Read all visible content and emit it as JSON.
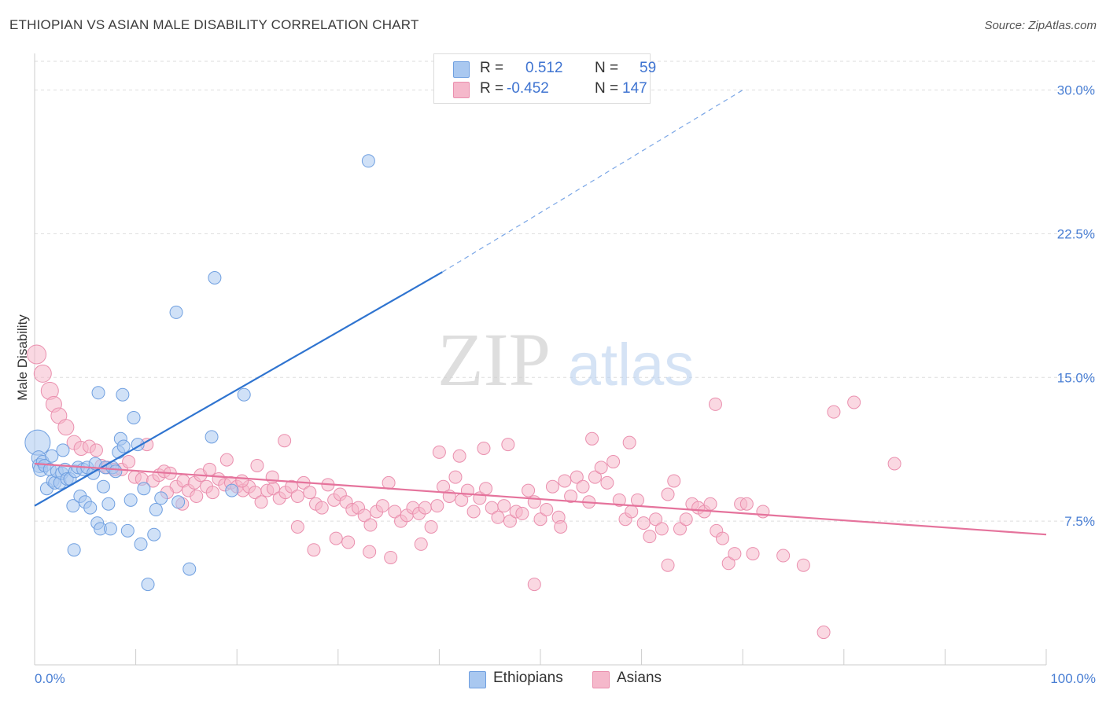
{
  "header": {
    "title": "ETHIOPIAN VS ASIAN MALE DISABILITY CORRELATION CHART",
    "source": "Source: ZipAtlas.com"
  },
  "watermark": {
    "zip": "ZIP",
    "atlas": "atlas"
  },
  "legend": {
    "rows": [
      {
        "r_label": "R =",
        "r_value": "0.512",
        "n_label": "N =",
        "n_value": "59",
        "color": "#a9c8f0"
      },
      {
        "r_label": "R =",
        "r_value": "-0.452",
        "n_label": "N =",
        "n_value": "147",
        "color": "#f5b8cb"
      }
    ]
  },
  "bottom_legend": {
    "ethiopians": "Ethiopians",
    "asians": "Asians"
  },
  "chart_data": {
    "type": "scatter",
    "title": "ETHIOPIAN VS ASIAN MALE DISABILITY CORRELATION CHART",
    "xlabel": "",
    "ylabel": "Male Disability",
    "xlim": [
      0,
      100
    ],
    "ylim": [
      0,
      31.5
    ],
    "y_ticks": [
      {
        "value": 7.5,
        "label": "7.5%"
      },
      {
        "value": 15.0,
        "label": "15.0%"
      },
      {
        "value": 22.5,
        "label": "22.5%"
      },
      {
        "value": 30.0,
        "label": "30.0%"
      }
    ],
    "x_ticks": [
      {
        "value": 0,
        "label": "0.0%"
      },
      {
        "value": 100,
        "label": "100.0%"
      }
    ],
    "grid": true,
    "legend_position": "top-center",
    "series": [
      {
        "name": "Ethiopians",
        "color": "#6f9fe0",
        "fill": "#a9c8f0",
        "r": 0.512,
        "n": 59,
        "trend": {
          "x0": 0,
          "y0": 8.3,
          "x1": 40.3,
          "y1": 20.5,
          "dash_to_x": 70.0,
          "dash_to_y": 30.0,
          "color": "#2f74d0"
        },
        "points": [
          [
            0.3,
            11.6,
            16
          ],
          [
            0.4,
            10.8,
            9
          ],
          [
            0.5,
            10.4,
            9
          ],
          [
            0.6,
            10.2,
            9
          ],
          [
            0.8,
            10.6,
            8
          ],
          [
            1.0,
            10.4,
            8
          ],
          [
            1.2,
            9.2,
            8
          ],
          [
            1.5,
            10.2,
            8
          ],
          [
            1.8,
            9.6,
            8
          ],
          [
            2.0,
            9.5,
            8
          ],
          [
            2.2,
            10.1,
            8
          ],
          [
            2.5,
            9.5,
            8
          ],
          [
            2.7,
            10.0,
            8
          ],
          [
            3.0,
            10.2,
            8
          ],
          [
            3.2,
            9.7,
            8
          ],
          [
            3.5,
            9.7,
            8
          ],
          [
            3.8,
            8.3,
            8
          ],
          [
            4.0,
            10.1,
            8
          ],
          [
            4.3,
            10.3,
            8
          ],
          [
            4.5,
            8.8,
            8
          ],
          [
            4.8,
            10.2,
            8
          ],
          [
            5.0,
            8.5,
            8
          ],
          [
            5.2,
            10.3,
            8
          ],
          [
            5.5,
            8.2,
            8
          ],
          [
            5.8,
            10.0,
            8
          ],
          [
            6.0,
            10.5,
            8
          ],
          [
            6.2,
            7.4,
            8
          ],
          [
            6.5,
            7.1,
            8
          ],
          [
            6.8,
            9.3,
            8
          ],
          [
            7.0,
            10.3,
            8
          ],
          [
            7.3,
            8.4,
            8
          ],
          [
            7.5,
            7.1,
            8
          ],
          [
            7.7,
            10.3,
            8
          ],
          [
            8.0,
            10.1,
            8
          ],
          [
            8.3,
            11.1,
            8
          ],
          [
            8.5,
            11.8,
            8
          ],
          [
            8.8,
            11.4,
            8
          ],
          [
            9.2,
            7.0,
            8
          ],
          [
            9.5,
            8.6,
            8
          ],
          [
            9.8,
            12.9,
            8
          ],
          [
            10.2,
            11.5,
            8
          ],
          [
            10.5,
            6.3,
            8
          ],
          [
            10.8,
            9.2,
            8
          ],
          [
            11.2,
            4.2,
            8
          ],
          [
            11.8,
            6.8,
            8
          ],
          [
            12.0,
            8.1,
            8
          ],
          [
            12.5,
            8.7,
            8
          ],
          [
            3.9,
            6.0,
            8
          ],
          [
            2.8,
            11.2,
            8
          ],
          [
            1.7,
            10.9,
            8
          ],
          [
            6.3,
            14.2,
            8
          ],
          [
            8.7,
            14.1,
            8
          ],
          [
            14.0,
            18.4,
            8
          ],
          [
            14.2,
            8.5,
            8
          ],
          [
            15.3,
            5.0,
            8
          ],
          [
            17.5,
            11.9,
            8
          ],
          [
            17.8,
            20.2,
            8
          ],
          [
            19.5,
            9.1,
            8
          ],
          [
            20.7,
            14.1,
            8
          ],
          [
            33.0,
            26.3,
            8
          ]
        ]
      },
      {
        "name": "Asians",
        "color": "#ea8fae",
        "fill": "#f5b8cb",
        "r": -0.452,
        "n": 147,
        "trend": {
          "x0": 0,
          "y0": 10.5,
          "x1": 100,
          "y1": 6.8,
          "color": "#e5739c"
        },
        "points": [
          [
            0.2,
            16.2,
            12
          ],
          [
            0.8,
            15.2,
            11
          ],
          [
            1.5,
            14.3,
            11
          ],
          [
            1.9,
            13.6,
            10
          ],
          [
            2.4,
            13.0,
            10
          ],
          [
            3.1,
            12.4,
            10
          ],
          [
            3.9,
            11.6,
            9
          ],
          [
            4.6,
            11.3,
            9
          ],
          [
            5.4,
            11.4,
            8
          ],
          [
            6.1,
            11.2,
            8
          ],
          [
            6.6,
            10.4,
            8
          ],
          [
            7.2,
            10.3,
            8
          ],
          [
            7.9,
            10.2,
            8
          ],
          [
            8.6,
            10.2,
            8
          ],
          [
            9.3,
            10.6,
            8
          ],
          [
            9.9,
            9.8,
            8
          ],
          [
            10.6,
            9.7,
            8
          ],
          [
            11.1,
            11.5,
            8
          ],
          [
            11.7,
            9.6,
            8
          ],
          [
            12.3,
            9.9,
            8
          ],
          [
            12.8,
            10.1,
            8
          ],
          [
            13.4,
            10.0,
            8
          ],
          [
            14.0,
            9.3,
            8
          ],
          [
            14.7,
            9.6,
            8
          ],
          [
            15.2,
            9.1,
            8
          ],
          [
            15.8,
            9.5,
            8
          ],
          [
            16.4,
            9.9,
            8
          ],
          [
            17.0,
            9.3,
            8
          ],
          [
            17.6,
            9.0,
            8
          ],
          [
            18.2,
            9.7,
            8
          ],
          [
            18.8,
            9.4,
            8
          ],
          [
            19.4,
            9.5,
            8
          ],
          [
            20.0,
            9.3,
            8
          ],
          [
            20.6,
            9.1,
            8
          ],
          [
            21.2,
            9.3,
            8
          ],
          [
            21.8,
            9.0,
            8
          ],
          [
            22.4,
            8.5,
            8
          ],
          [
            23.0,
            9.1,
            8
          ],
          [
            23.6,
            9.2,
            8
          ],
          [
            24.2,
            8.7,
            8
          ],
          [
            24.8,
            9.0,
            8
          ],
          [
            25.4,
            9.3,
            8
          ],
          [
            26.0,
            8.8,
            8
          ],
          [
            26.6,
            9.5,
            8
          ],
          [
            27.2,
            9.0,
            8
          ],
          [
            27.8,
            8.4,
            8
          ],
          [
            28.4,
            8.2,
            8
          ],
          [
            29.0,
            9.4,
            8
          ],
          [
            29.6,
            8.6,
            8
          ],
          [
            30.2,
            8.9,
            8
          ],
          [
            30.8,
            8.5,
            8
          ],
          [
            31.4,
            8.1,
            8
          ],
          [
            32.0,
            8.2,
            8
          ],
          [
            32.6,
            7.8,
            8
          ],
          [
            33.2,
            7.3,
            8
          ],
          [
            33.8,
            8.0,
            8
          ],
          [
            34.4,
            8.3,
            8
          ],
          [
            35.0,
            9.5,
            8
          ],
          [
            35.6,
            8.0,
            8
          ],
          [
            36.2,
            7.5,
            8
          ],
          [
            36.8,
            7.8,
            8
          ],
          [
            37.4,
            8.2,
            8
          ],
          [
            38.0,
            7.9,
            8
          ],
          [
            38.6,
            8.2,
            8
          ],
          [
            39.2,
            7.2,
            8
          ],
          [
            39.8,
            8.3,
            8
          ],
          [
            40.4,
            9.3,
            8
          ],
          [
            41.0,
            8.8,
            8
          ],
          [
            41.6,
            9.8,
            8
          ],
          [
            42.2,
            8.6,
            8
          ],
          [
            42.8,
            9.1,
            8
          ],
          [
            43.4,
            8.0,
            8
          ],
          [
            44.0,
            8.7,
            8
          ],
          [
            44.6,
            9.2,
            8
          ],
          [
            45.2,
            8.2,
            8
          ],
          [
            45.8,
            7.7,
            8
          ],
          [
            46.4,
            8.3,
            8
          ],
          [
            47.0,
            7.5,
            8
          ],
          [
            47.6,
            8.0,
            8
          ],
          [
            48.2,
            7.9,
            8
          ],
          [
            48.8,
            9.1,
            8
          ],
          [
            49.4,
            8.5,
            8
          ],
          [
            50.0,
            7.6,
            8
          ],
          [
            50.6,
            8.1,
            8
          ],
          [
            51.2,
            9.3,
            8
          ],
          [
            51.8,
            7.7,
            8
          ],
          [
            52.4,
            9.6,
            8
          ],
          [
            53.0,
            8.8,
            8
          ],
          [
            53.6,
            9.8,
            8
          ],
          [
            54.2,
            9.3,
            8
          ],
          [
            54.8,
            8.5,
            8
          ],
          [
            55.4,
            9.8,
            8
          ],
          [
            56.0,
            10.3,
            8
          ],
          [
            56.6,
            9.5,
            8
          ],
          [
            57.2,
            10.6,
            8
          ],
          [
            57.8,
            8.6,
            8
          ],
          [
            58.4,
            7.6,
            8
          ],
          [
            59.0,
            8.0,
            8
          ],
          [
            59.6,
            8.6,
            8
          ],
          [
            60.2,
            7.4,
            8
          ],
          [
            60.8,
            6.7,
            8
          ],
          [
            61.4,
            7.6,
            8
          ],
          [
            62.0,
            7.1,
            8
          ],
          [
            62.6,
            8.9,
            8
          ],
          [
            63.2,
            9.6,
            8
          ],
          [
            63.8,
            7.1,
            8
          ],
          [
            64.4,
            7.6,
            8
          ],
          [
            65.0,
            8.4,
            8
          ],
          [
            65.6,
            8.2,
            8
          ],
          [
            66.2,
            8.0,
            8
          ],
          [
            66.8,
            8.4,
            8
          ],
          [
            67.4,
            7.0,
            8
          ],
          [
            68.0,
            6.6,
            8
          ],
          [
            68.6,
            5.3,
            8
          ],
          [
            69.2,
            5.8,
            8
          ],
          [
            69.8,
            8.4,
            8
          ],
          [
            70.4,
            8.4,
            8
          ],
          [
            71.0,
            5.8,
            8
          ],
          [
            72.0,
            8.0,
            8
          ],
          [
            74.0,
            5.7,
            8
          ],
          [
            76.0,
            5.2,
            8
          ],
          [
            78.0,
            1.7,
            8
          ],
          [
            79.0,
            13.2,
            8
          ],
          [
            81.0,
            13.7,
            8
          ],
          [
            85.0,
            10.5,
            8
          ],
          [
            67.3,
            13.6,
            8
          ],
          [
            62.6,
            5.2,
            8
          ],
          [
            58.8,
            11.6,
            8
          ],
          [
            55.1,
            11.8,
            8
          ],
          [
            52.0,
            7.2,
            8
          ],
          [
            49.4,
            4.2,
            8
          ],
          [
            46.8,
            11.5,
            8
          ],
          [
            44.4,
            11.3,
            8
          ],
          [
            42.0,
            10.9,
            8
          ],
          [
            40.0,
            11.1,
            8
          ],
          [
            38.2,
            6.3,
            8
          ],
          [
            35.2,
            5.6,
            8
          ],
          [
            33.1,
            5.9,
            8
          ],
          [
            31.0,
            6.4,
            8
          ],
          [
            29.8,
            6.6,
            8
          ],
          [
            27.6,
            6.0,
            8
          ],
          [
            26.0,
            7.2,
            8
          ],
          [
            24.7,
            11.7,
            8
          ],
          [
            23.5,
            9.8,
            8
          ],
          [
            22.0,
            10.4,
            8
          ],
          [
            20.5,
            9.6,
            8
          ],
          [
            19.0,
            10.7,
            8
          ],
          [
            17.3,
            10.2,
            8
          ],
          [
            16.0,
            8.8,
            8
          ],
          [
            14.6,
            8.4,
            8
          ],
          [
            13.1,
            9.0,
            8
          ]
        ]
      }
    ]
  }
}
